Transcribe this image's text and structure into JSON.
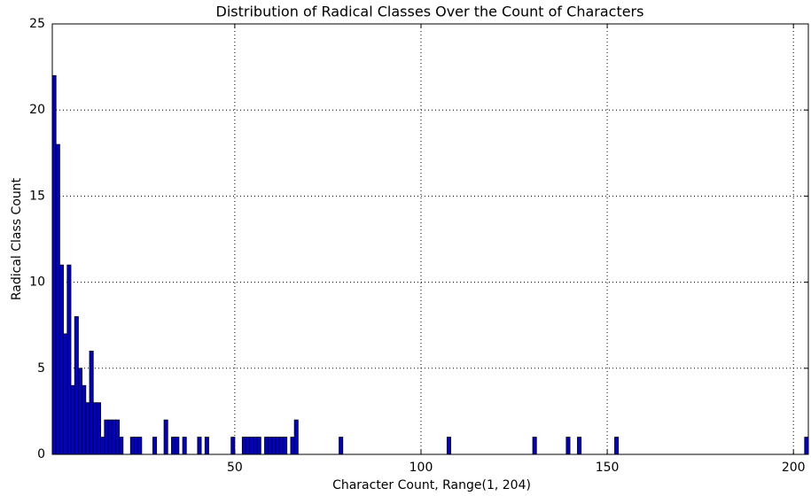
{
  "chart_data": {
    "type": "bar",
    "title": "Distribution of Radical Classes Over the Count of Characters",
    "x_label": "Character Count, Range(1, 204)",
    "y_label": "Radical Class Count",
    "x": [
      1,
      2,
      3,
      4,
      5,
      6,
      7,
      8,
      9,
      10,
      11,
      12,
      13,
      14,
      15,
      16,
      17,
      18,
      19,
      22,
      23,
      24,
      28,
      31,
      33,
      34,
      36,
      40,
      42,
      49,
      52,
      53,
      54,
      55,
      56,
      58,
      59,
      60,
      61,
      62,
      63,
      65,
      66,
      78,
      107,
      130,
      139,
      142,
      152,
      203
    ],
    "values": [
      22,
      18,
      11,
      7,
      11,
      4,
      8,
      5,
      4,
      3,
      6,
      3,
      3,
      1,
      2,
      2,
      2,
      2,
      1,
      1,
      1,
      1,
      1,
      2,
      1,
      1,
      1,
      1,
      1,
      1,
      1,
      1,
      1,
      1,
      1,
      1,
      1,
      1,
      1,
      1,
      1,
      1,
      2,
      1,
      1,
      1,
      1,
      1,
      1,
      1
    ],
    "color": "#0000cc",
    "xlim": [
      1,
      204
    ],
    "xticks": [
      50,
      100,
      150,
      200
    ],
    "ylim": [
      0,
      25
    ],
    "yticks": [
      0,
      5,
      10,
      15,
      20,
      25
    ],
    "grid": true
  }
}
